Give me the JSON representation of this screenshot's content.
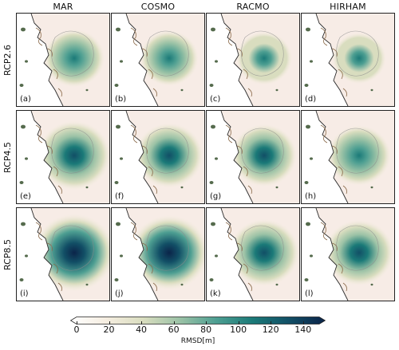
{
  "columns": [
    "MAR",
    "COSMO",
    "RACMO",
    "HIRHAM"
  ],
  "rows": [
    "RCP2.6",
    "RCP4.5",
    "RCP8.5"
  ],
  "panel_labels": [
    "(a)",
    "(b)",
    "(c)",
    "(d)",
    "(e)",
    "(f)",
    "(g)",
    "(h)",
    "(i)",
    "(j)",
    "(k)",
    "(l)"
  ],
  "colorbar": {
    "label": "RMSD[m]",
    "ticks": [
      "0",
      "20",
      "40",
      "60",
      "80",
      "100",
      "120",
      "140"
    ],
    "min": 0,
    "max": 150,
    "colors": [
      "#ffffff",
      "#f5ede0",
      "#d9ddbf",
      "#9bc2a6",
      "#4e9f92",
      "#1b7a78",
      "#124f66",
      "#0b2449"
    ]
  },
  "intensity": [
    [
      0.55,
      0.5,
      0.45,
      0.4
    ],
    [
      0.8,
      0.7,
      0.65,
      0.6
    ],
    [
      0.98,
      0.92,
      0.75,
      0.72
    ]
  ]
}
